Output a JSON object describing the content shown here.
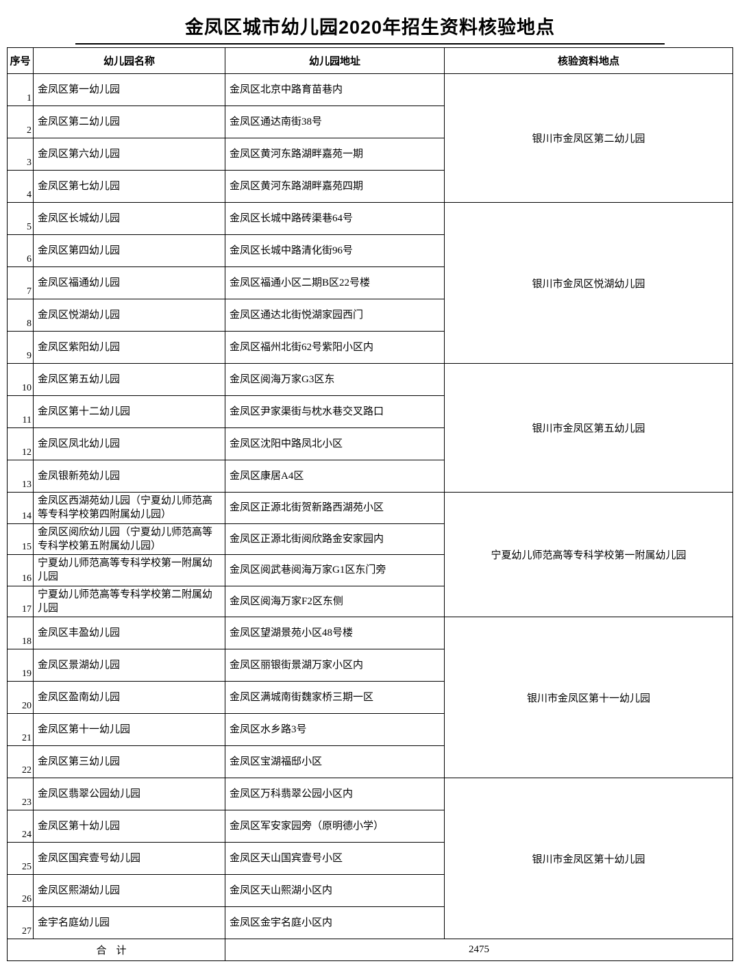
{
  "title": "金凤区城市幼儿园2020年招生资料核验地点",
  "columns": {
    "seq": "序号",
    "name": "幼儿园名称",
    "addr": "幼儿园地址",
    "loc": "核验资料地点"
  },
  "groups": [
    {
      "loc": "银川市金凤区第二幼儿园",
      "rows": [
        {
          "seq": "1",
          "name": "金凤区第一幼儿园",
          "addr": "金凤区北京中路育苗巷内"
        },
        {
          "seq": "2",
          "name": "金凤区第二幼儿园",
          "addr": "金凤区通达南街38号"
        },
        {
          "seq": "3",
          "name": "金凤区第六幼儿园",
          "addr": "金凤区黄河东路湖畔嘉苑一期"
        },
        {
          "seq": "4",
          "name": "金凤区第七幼儿园",
          "addr": "金凤区黄河东路湖畔嘉苑四期"
        }
      ]
    },
    {
      "loc": "银川市金凤区悦湖幼儿园",
      "rows": [
        {
          "seq": "5",
          "name": "金凤区长城幼儿园",
          "addr": "金凤区长城中路砖渠巷64号"
        },
        {
          "seq": "6",
          "name": "金凤区第四幼儿园",
          "addr": "金凤区长城中路清化街96号"
        },
        {
          "seq": "7",
          "name": "金凤区福通幼儿园",
          "addr": "金凤区福通小区二期B区22号楼"
        },
        {
          "seq": "8",
          "name": "金凤区悦湖幼儿园",
          "addr": "金凤区通达北街悦湖家园西门"
        },
        {
          "seq": "9",
          "name": "金凤区紫阳幼儿园",
          "addr": "金凤区福州北街62号紫阳小区内"
        }
      ]
    },
    {
      "loc": "银川市金凤区第五幼儿园",
      "rows": [
        {
          "seq": "10",
          "name": "金凤区第五幼儿园",
          "addr": "金凤区阅海万家G3区东"
        },
        {
          "seq": "11",
          "name": "金凤区第十二幼儿园",
          "addr": "金凤区尹家渠街与枕水巷交叉路口"
        },
        {
          "seq": "12",
          "name": "金凤区凤北幼儿园",
          "addr": "金凤区沈阳中路凤北小区"
        },
        {
          "seq": "13",
          "name": "金凤银新苑幼儿园",
          "addr": "金凤区康居A4区"
        }
      ]
    },
    {
      "loc": "宁夏幼儿师范高等专科学校第一附属幼儿园",
      "short": true,
      "rows": [
        {
          "seq": "14",
          "name": "金凤区西湖苑幼儿园（宁夏幼儿师范高等专科学校第四附属幼儿园）",
          "addr": "金凤区正源北街贺新路西湖苑小区"
        },
        {
          "seq": "15",
          "name": "金凤区阅欣幼儿园（宁夏幼儿师范高等专科学校第五附属幼儿园）",
          "addr": "金凤区正源北街阅欣路金安家园内"
        },
        {
          "seq": "16",
          "name": "宁夏幼儿师范高等专科学校第一附属幼儿园",
          "addr": "金凤区阅武巷阅海万家G1区东门旁"
        },
        {
          "seq": "17",
          "name": "宁夏幼儿师范高等专科学校第二附属幼儿园",
          "addr": "金凤区阅海万家F2区东侧"
        }
      ]
    },
    {
      "loc": "银川市金凤区第十一幼儿园",
      "rows": [
        {
          "seq": "18",
          "name": "金凤区丰盈幼儿园",
          "addr": "金凤区望湖景苑小区48号楼"
        },
        {
          "seq": "19",
          "name": "金凤区景湖幼儿园",
          "addr": "金凤区丽银街景湖万家小区内"
        },
        {
          "seq": "20",
          "name": "金凤区盈南幼儿园",
          "addr": "金凤区满城南街魏家桥三期一区"
        },
        {
          "seq": "21",
          "name": "金凤区第十一幼儿园",
          "addr": "金凤区水乡路3号"
        },
        {
          "seq": "22",
          "name": "金凤区第三幼儿园",
          "addr": "金凤区宝湖福邸小区"
        }
      ]
    },
    {
      "loc": "银川市金凤区第十幼儿园",
      "rows": [
        {
          "seq": "23",
          "name": "金凤区翡翠公园幼儿园",
          "addr": "金凤区万科翡翠公园小区内"
        },
        {
          "seq": "24",
          "name": "金凤区第十幼儿园",
          "addr": "金凤区军安家园旁（原明德小学）"
        },
        {
          "seq": "25",
          "name": "金凤区国宾壹号幼儿园",
          "addr": "金凤区天山国宾壹号小区"
        },
        {
          "seq": "26",
          "name": "金凤区熙湖幼儿园",
          "addr": "金凤区天山熙湖小区内"
        },
        {
          "seq": "27",
          "name": "金宇名庭幼儿园",
          "addr": "金凤区金宇名庭小区内"
        }
      ]
    }
  ],
  "footer": {
    "label": "合计",
    "value": "2475"
  },
  "style": {
    "border_color": "#000000",
    "background": "#ffffff",
    "title_fontsize": 27,
    "header_fontsize": 15,
    "cell_fontsize": 15,
    "row_height_normal": 47,
    "row_height_short": 37,
    "col_widths": {
      "seq": 38,
      "name": 280,
      "addr": 320
    }
  }
}
